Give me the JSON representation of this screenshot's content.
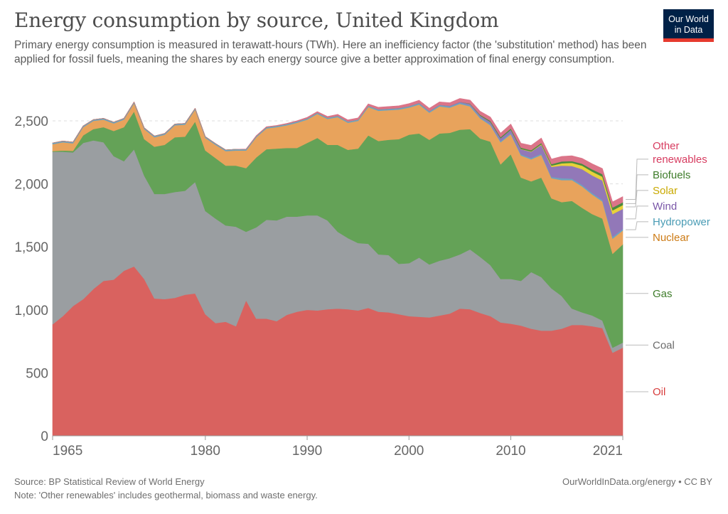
{
  "header": {
    "title": "Energy consumption by source, United Kingdom",
    "subtitle": "Primary energy consumption is measured in terawatt-hours (TWh). Here an inefficiency factor (the 'substitution' method) has been applied for fossil fuels, meaning the shares by each energy source give a better approximation of final energy consumption.",
    "logo_line1": "Our World",
    "logo_line2": "in Data"
  },
  "footer": {
    "source": "Source: BP Statistical Review of World Energy",
    "note": "Note: 'Other renewables' includes geothermal, biomass and waste energy.",
    "credit": "OurWorldInData.org/energy • CC BY"
  },
  "chart_data": {
    "type": "area",
    "stacked": true,
    "title": "Energy consumption by source, United Kingdom",
    "xlabel": "",
    "ylabel": "",
    "xlim": [
      1965,
      2021
    ],
    "ylim": [
      0,
      2700
    ],
    "grid": true,
    "x_ticks": [
      "1965",
      "1980",
      "1990",
      "2000",
      "2010",
      "2021"
    ],
    "x_tick_values": [
      1965,
      1980,
      1990,
      2000,
      2010,
      2021
    ],
    "y_ticks": [
      "0",
      "500",
      "1,000",
      "1,500",
      "2,000",
      "2,500"
    ],
    "y_tick_values": [
      0,
      500,
      1000,
      1500,
      2000,
      2500
    ],
    "x": [
      1965,
      1966,
      1967,
      1968,
      1969,
      1970,
      1971,
      1972,
      1973,
      1974,
      1975,
      1976,
      1977,
      1978,
      1979,
      1980,
      1981,
      1982,
      1983,
      1984,
      1985,
      1986,
      1987,
      1988,
      1989,
      1990,
      1991,
      1992,
      1993,
      1994,
      1995,
      1996,
      1997,
      1998,
      1999,
      2000,
      2001,
      2002,
      2003,
      2004,
      2005,
      2006,
      2007,
      2008,
      2009,
      2010,
      2011,
      2012,
      2013,
      2014,
      2015,
      2016,
      2017,
      2018,
      2019,
      2020,
      2021
    ],
    "series": [
      {
        "name": "Oil",
        "color": "#d9625f",
        "label_color": "#d73c3c",
        "values": [
          885,
          950,
          1030,
          1085,
          1165,
          1230,
          1240,
          1310,
          1345,
          1245,
          1090,
          1085,
          1095,
          1120,
          1130,
          965,
          895,
          905,
          870,
          1075,
          930,
          930,
          910,
          960,
          985,
          1000,
          995,
          1005,
          1010,
          1005,
          995,
          1015,
          985,
          980,
          965,
          950,
          945,
          940,
          955,
          970,
          1010,
          1005,
          975,
          950,
          900,
          890,
          875,
          850,
          835,
          835,
          850,
          880,
          880,
          870,
          855,
          660,
          700
        ]
      },
      {
        "name": "Coal",
        "color": "#9a9ea1",
        "label_color": "#6a6a6a",
        "values": [
          1370,
          1305,
          1220,
          1240,
          1180,
          1100,
          980,
          870,
          930,
          820,
          830,
          835,
          840,
          825,
          885,
          820,
          830,
          765,
          790,
          545,
          725,
          785,
          800,
          780,
          755,
          750,
          755,
          705,
          610,
          565,
          535,
          510,
          455,
          455,
          400,
          420,
          470,
          420,
          435,
          440,
          430,
          475,
          445,
          405,
          345,
          355,
          355,
          450,
          425,
          335,
          260,
          130,
          100,
          85,
          60,
          40,
          40
        ]
      },
      {
        "name": "Gas",
        "color": "#64a257",
        "label_color": "#3e7c2a",
        "values": [
          5,
          10,
          12,
          60,
          90,
          120,
          200,
          270,
          300,
          290,
          375,
          390,
          435,
          430,
          480,
          480,
          480,
          475,
          485,
          505,
          555,
          560,
          570,
          545,
          545,
          575,
          615,
          600,
          690,
          700,
          750,
          860,
          900,
          915,
          990,
          1020,
          985,
          990,
          1010,
          995,
          990,
          955,
          940,
          980,
          910,
          990,
          820,
          720,
          790,
          715,
          745,
          855,
          830,
          805,
          810,
          745,
          780
        ]
      },
      {
        "name": "Nuclear",
        "color": "#e8a35c",
        "label_color": "#cc7a14",
        "values": [
          55,
          65,
          60,
          65,
          65,
          60,
          60,
          60,
          65,
          80,
          75,
          80,
          95,
          95,
          95,
          100,
          105,
          115,
          120,
          140,
          160,
          165,
          170,
          180,
          200,
          185,
          190,
          205,
          220,
          215,
          220,
          225,
          240,
          235,
          235,
          215,
          230,
          215,
          215,
          200,
          205,
          180,
          160,
          130,
          175,
          160,
          175,
          175,
          180,
          160,
          175,
          165,
          170,
          155,
          135,
          120,
          110
        ]
      },
      {
        "name": "Hydropower",
        "color": "#6ea3c0",
        "label_color": "#4a9cb5",
        "values": [
          10,
          10,
          10,
          10,
          10,
          10,
          10,
          10,
          10,
          10,
          10,
          10,
          10,
          10,
          10,
          10,
          10,
          10,
          10,
          10,
          10,
          10,
          10,
          10,
          10,
          10,
          10,
          10,
          10,
          10,
          10,
          10,
          10,
          10,
          10,
          10,
          10,
          10,
          10,
          10,
          10,
          10,
          10,
          10,
          10,
          10,
          10,
          10,
          10,
          10,
          15,
          12,
          12,
          12,
          12,
          15,
          12
        ]
      },
      {
        "name": "Wind",
        "color": "#9278b8",
        "label_color": "#7a57a8",
        "values": [
          0,
          0,
          0,
          0,
          0,
          0,
          0,
          0,
          0,
          0,
          0,
          0,
          0,
          0,
          0,
          0,
          0,
          0,
          0,
          0,
          0,
          0,
          0,
          0,
          0,
          0,
          0,
          0,
          0,
          0,
          0,
          0,
          2,
          2,
          2,
          2,
          3,
          3,
          3,
          5,
          7,
          10,
          12,
          17,
          22,
          25,
          40,
          50,
          70,
          80,
          100,
          100,
          125,
          140,
          155,
          180,
          160
        ]
      },
      {
        "name": "Solar",
        "color": "#e8d13a",
        "label_color": "#c9a900",
        "values": [
          0,
          0,
          0,
          0,
          0,
          0,
          0,
          0,
          0,
          0,
          0,
          0,
          0,
          0,
          0,
          0,
          0,
          0,
          0,
          0,
          0,
          0,
          0,
          0,
          0,
          0,
          0,
          0,
          0,
          0,
          0,
          0,
          0,
          0,
          0,
          0,
          0,
          0,
          0,
          0,
          0,
          0,
          0,
          0,
          0,
          0,
          2,
          3,
          5,
          10,
          18,
          25,
          28,
          30,
          30,
          30,
          30
        ]
      },
      {
        "name": "Biofuels",
        "color": "#4a8b3f",
        "label_color": "#3e7c2a",
        "values": [
          0,
          0,
          0,
          0,
          0,
          0,
          0,
          0,
          0,
          0,
          0,
          0,
          0,
          0,
          0,
          0,
          0,
          0,
          0,
          0,
          0,
          0,
          0,
          0,
          0,
          0,
          0,
          0,
          0,
          0,
          0,
          0,
          0,
          0,
          0,
          0,
          0,
          0,
          0,
          0,
          0,
          3,
          6,
          8,
          9,
          10,
          10,
          9,
          10,
          12,
          15,
          14,
          15,
          18,
          20,
          22,
          22
        ]
      },
      {
        "name": "Other renewables",
        "color": "#db7488",
        "label_color": "#d73c60",
        "values": [
          0,
          0,
          0,
          0,
          0,
          0,
          0,
          0,
          0,
          0,
          0,
          0,
          0,
          0,
          0,
          0,
          0,
          0,
          0,
          2,
          3,
          4,
          4,
          5,
          6,
          8,
          9,
          10,
          12,
          13,
          14,
          15,
          16,
          17,
          18,
          20,
          21,
          22,
          23,
          24,
          26,
          27,
          28,
          30,
          32,
          35,
          36,
          38,
          39,
          40,
          40,
          42,
          43,
          44,
          45,
          45,
          45
        ]
      }
    ],
    "legend_placement": "right-inline"
  }
}
